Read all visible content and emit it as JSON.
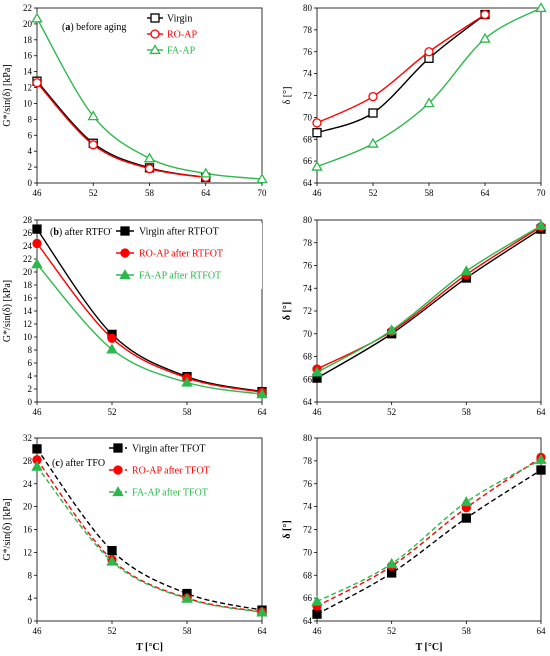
{
  "colors": {
    "black": "#000000",
    "red": "#ff0000",
    "green": "#2db84d"
  },
  "chart_data": [
    {
      "id": "a-gstar",
      "type": "line",
      "panel_label": "(a)",
      "annotation": "before aging",
      "xlabel": "",
      "ylabel": "G*/sin(δ) [kPa]",
      "xlim": [
        46,
        70
      ],
      "ylim": [
        0,
        22
      ],
      "xticks": [
        46,
        52,
        58,
        64,
        70
      ],
      "yticks": [
        0,
        2,
        4,
        6,
        8,
        10,
        12,
        14,
        16,
        18,
        20,
        22
      ],
      "legend_position": "top-right",
      "series": [
        {
          "name": "Virgin",
          "color": "#000000",
          "marker": "square-open",
          "dash": false,
          "x": [
            46,
            52,
            58,
            64
          ],
          "values": [
            12.8,
            5.0,
            1.9,
            0.7
          ]
        },
        {
          "name": "RO-AP",
          "color": "#ff0000",
          "marker": "circle-open",
          "dash": false,
          "x": [
            46,
            52,
            58,
            64
          ],
          "values": [
            12.6,
            4.8,
            1.8,
            0.7
          ]
        },
        {
          "name": "FA-AP",
          "color": "#2db84d",
          "marker": "triangle-open",
          "dash": false,
          "x": [
            46,
            52,
            58,
            64,
            70
          ],
          "values": [
            20.7,
            8.4,
            3.1,
            1.2,
            0.5
          ]
        }
      ]
    },
    {
      "id": "a-delta",
      "type": "line",
      "xlabel": "",
      "ylabel": "δ [°]",
      "xlim": [
        46,
        70
      ],
      "ylim": [
        64,
        80
      ],
      "xticks": [
        46,
        52,
        58,
        64,
        70
      ],
      "yticks": [
        64,
        66,
        68,
        70,
        72,
        74,
        76,
        78,
        80
      ],
      "series": [
        {
          "name": "Virgin",
          "color": "#000000",
          "marker": "square-open",
          "dash": false,
          "x": [
            46,
            52,
            58,
            64
          ],
          "values": [
            68.6,
            70.4,
            75.4,
            79.4
          ]
        },
        {
          "name": "RO-AP",
          "color": "#ff0000",
          "marker": "circle-open",
          "dash": false,
          "x": [
            46,
            52,
            58,
            64
          ],
          "values": [
            69.5,
            71.9,
            76.0,
            79.4
          ]
        },
        {
          "name": "FA-AP",
          "color": "#2db84d",
          "marker": "triangle-open",
          "dash": false,
          "x": [
            46,
            52,
            58,
            64,
            70
          ],
          "values": [
            65.5,
            67.6,
            71.3,
            77.2,
            80.0
          ]
        }
      ]
    },
    {
      "id": "b-gstar",
      "type": "line",
      "panel_label": "(b)",
      "annotation": "after RTFOT",
      "xlabel": "",
      "ylabel": "G*/sin(δ) [kPa]",
      "xlim": [
        46,
        64
      ],
      "ylim": [
        0,
        28
      ],
      "xticks": [
        46,
        52,
        58,
        64
      ],
      "yticks": [
        0,
        2,
        4,
        6,
        8,
        10,
        12,
        14,
        16,
        18,
        20,
        22,
        24,
        26,
        28
      ],
      "legend_position": "top-right",
      "series": [
        {
          "name": "Virgin after RTFOT",
          "color": "#000000",
          "marker": "square",
          "dash": false,
          "x": [
            46,
            52,
            58,
            64
          ],
          "values": [
            26.6,
            10.4,
            3.9,
            1.6
          ]
        },
        {
          "name": "RO-AP after RTFOT",
          "color": "#ff0000",
          "marker": "circle",
          "dash": false,
          "x": [
            46,
            52,
            58,
            64
          ],
          "values": [
            24.4,
            9.8,
            3.7,
            1.5
          ]
        },
        {
          "name": "FA-AP after RTFOT",
          "color": "#2db84d",
          "marker": "triangle",
          "dash": false,
          "x": [
            46,
            52,
            58,
            64
          ],
          "values": [
            21.2,
            8.1,
            3.0,
            1.2
          ]
        }
      ]
    },
    {
      "id": "b-delta",
      "type": "line",
      "xlabel": "",
      "ylabel": "δ [°]",
      "xlim": [
        46,
        64
      ],
      "ylim": [
        64,
        80
      ],
      "xticks": [
        46,
        52,
        58,
        64
      ],
      "yticks": [
        64,
        66,
        68,
        70,
        72,
        74,
        76,
        78,
        80
      ],
      "series": [
        {
          "name": "Virgin after RTFOT",
          "color": "#000000",
          "marker": "square",
          "dash": false,
          "x": [
            46,
            52,
            58,
            64
          ],
          "values": [
            66.1,
            70.0,
            74.9,
            79.2
          ]
        },
        {
          "name": "RO-AP after RTFOT",
          "color": "#ff0000",
          "marker": "circle",
          "dash": false,
          "x": [
            46,
            52,
            58,
            64
          ],
          "values": [
            66.9,
            70.2,
            75.2,
            79.4
          ]
        },
        {
          "name": "FA-AP after RTFOT",
          "color": "#2db84d",
          "marker": "triangle",
          "dash": false,
          "x": [
            46,
            52,
            58,
            64
          ],
          "values": [
            66.6,
            70.3,
            75.5,
            79.5
          ]
        }
      ]
    },
    {
      "id": "c-gstar",
      "type": "line",
      "panel_label": "(c)",
      "annotation": "after TFOT",
      "xlabel": "T [°C]",
      "ylabel": "G*/sin(δ) [kPa]",
      "xlim": [
        46,
        64
      ],
      "ylim": [
        0,
        32
      ],
      "xticks": [
        46,
        52,
        58,
        64
      ],
      "yticks": [
        0,
        4,
        8,
        12,
        16,
        20,
        24,
        28,
        32
      ],
      "legend_position": "top-right",
      "series": [
        {
          "name": "Virgin after TFOT",
          "color": "#000000",
          "marker": "square",
          "dash": true,
          "x": [
            46,
            52,
            58,
            64
          ],
          "values": [
            30.1,
            12.3,
            4.8,
            1.9
          ]
        },
        {
          "name": "RO-AP after TFOT",
          "color": "#ff0000",
          "marker": "circle",
          "dash": true,
          "x": [
            46,
            52,
            58,
            64
          ],
          "values": [
            28.2,
            10.7,
            4.0,
            1.6
          ]
        },
        {
          "name": "FA-AP after TFOT",
          "color": "#2db84d",
          "marker": "triangle",
          "dash": true,
          "x": [
            46,
            52,
            58,
            64
          ],
          "values": [
            27.0,
            10.4,
            3.9,
            1.5
          ]
        }
      ]
    },
    {
      "id": "c-delta",
      "type": "line",
      "xlabel": "T [°C]",
      "ylabel": "δ [°]",
      "xlim": [
        46,
        64
      ],
      "ylim": [
        64,
        80
      ],
      "xticks": [
        46,
        52,
        58,
        64
      ],
      "yticks": [
        64,
        66,
        68,
        70,
        72,
        74,
        76,
        78,
        80
      ],
      "series": [
        {
          "name": "Virgin after TFOT",
          "color": "#000000",
          "marker": "square",
          "dash": true,
          "x": [
            46,
            52,
            58,
            64
          ],
          "values": [
            64.6,
            68.2,
            73.0,
            77.2
          ]
        },
        {
          "name": "RO-AP after TFOT",
          "color": "#ff0000",
          "marker": "circle",
          "dash": true,
          "x": [
            46,
            52,
            58,
            64
          ],
          "values": [
            65.3,
            68.8,
            73.9,
            78.3
          ]
        },
        {
          "name": "FA-AP after TFOT",
          "color": "#2db84d",
          "marker": "triangle",
          "dash": true,
          "x": [
            46,
            52,
            58,
            64
          ],
          "values": [
            65.7,
            69.0,
            74.4,
            78.1
          ]
        }
      ]
    }
  ]
}
